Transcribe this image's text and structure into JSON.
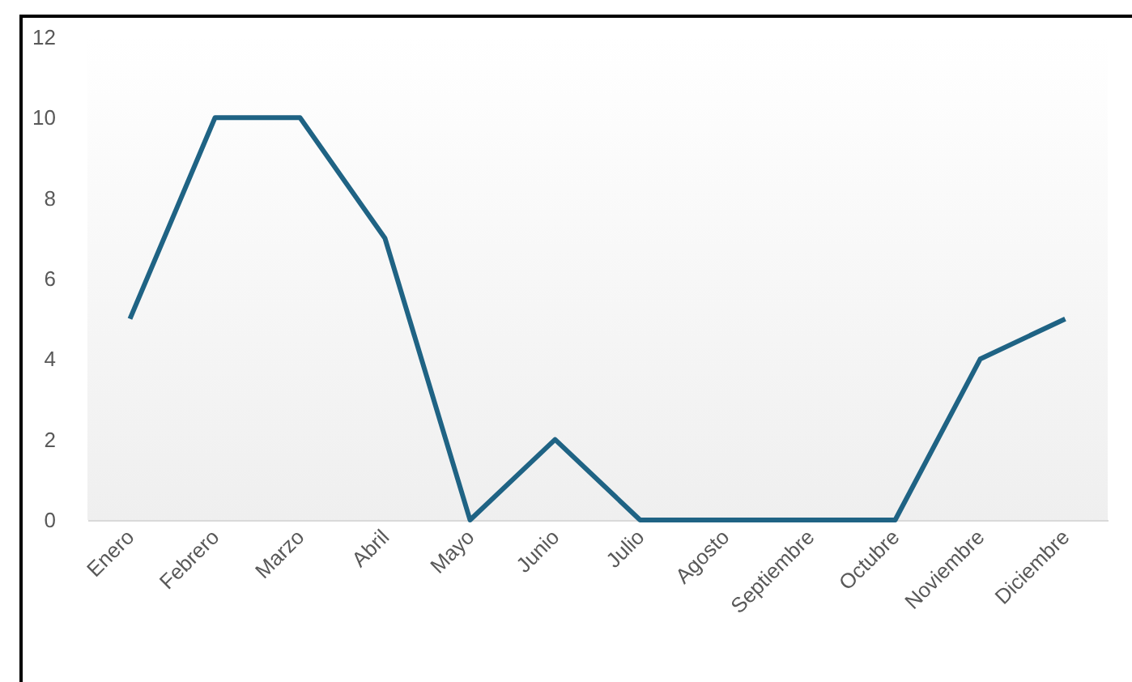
{
  "chart_data": {
    "type": "line",
    "categories": [
      "Enero",
      "Febrero",
      "Marzo",
      "Abril",
      "Mayo",
      "Junio",
      "Julio",
      "Agosto",
      "Septiembre",
      "Octubre",
      "Noviembre",
      "Diciembre"
    ],
    "series": [
      {
        "color": "#1f6384",
        "values": [
          5,
          10,
          10,
          7,
          0,
          2,
          0,
          0,
          0,
          0,
          4,
          5
        ]
      }
    ],
    "ylim": [
      0,
      12
    ],
    "yticks": [
      0,
      2,
      4,
      6,
      8,
      10,
      12
    ],
    "grid": false,
    "legend": false,
    "marker": "none",
    "line_style": "solid"
  }
}
